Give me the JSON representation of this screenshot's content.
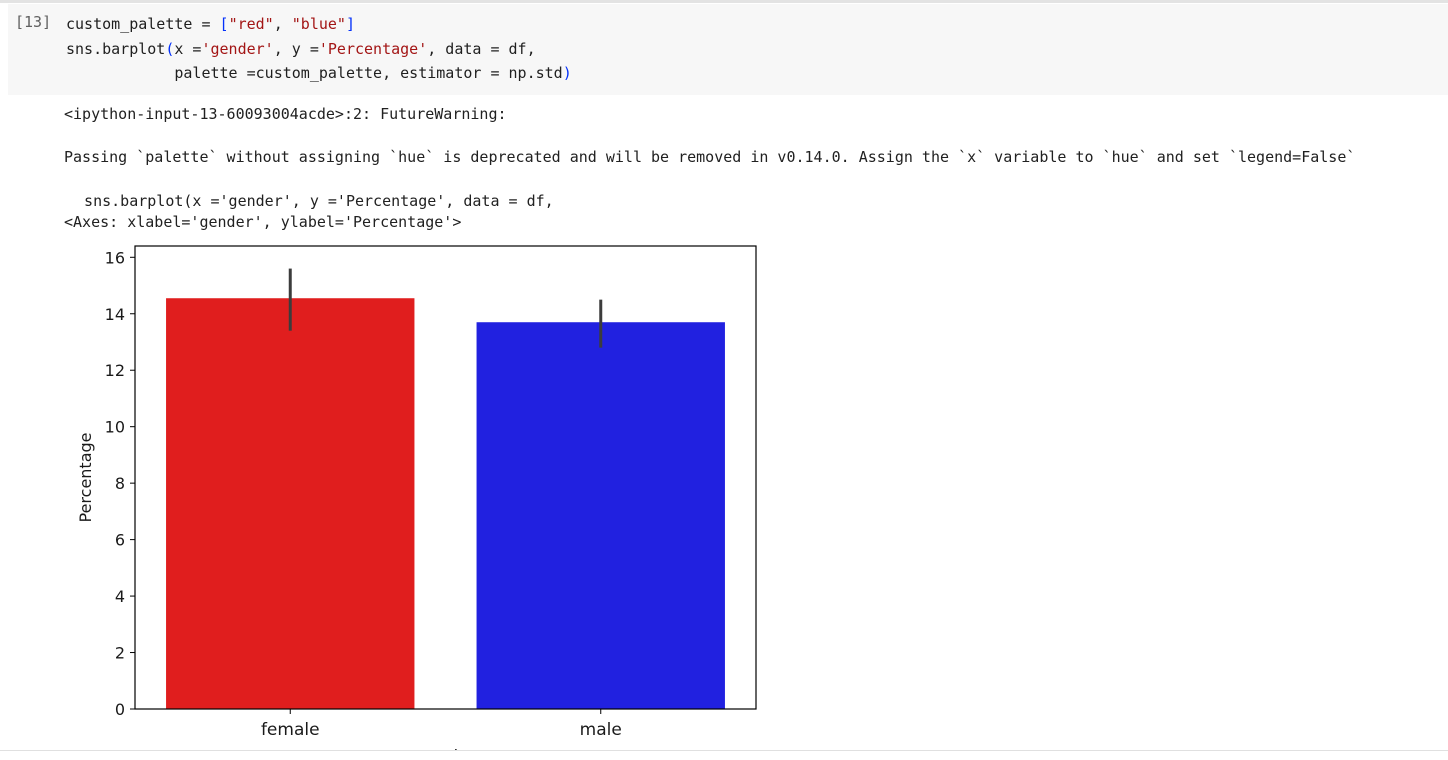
{
  "cell": {
    "exec_count": "[13]",
    "code_tokens": [
      [
        {
          "t": "custom_palette = "
        },
        {
          "t": "[",
          "c": "paren"
        },
        {
          "t": "\"red\"",
          "c": "str"
        },
        {
          "t": ", "
        },
        {
          "t": "\"blue\"",
          "c": "str"
        },
        {
          "t": "]",
          "c": "paren"
        }
      ],
      [
        {
          "t": "sns.barplot"
        },
        {
          "t": "(",
          "c": "paren"
        },
        {
          "t": "x ="
        },
        {
          "t": "'gender'",
          "c": "str"
        },
        {
          "t": ", y ="
        },
        {
          "t": "'Percentage'",
          "c": "str"
        },
        {
          "t": ", data = df,"
        }
      ],
      [
        {
          "t": "            palette =custom_palette, estimator = np.std"
        },
        {
          "t": ")",
          "c": "paren"
        }
      ]
    ]
  },
  "output": {
    "warning_header": "<ipython-input-13-60093004acde>:2: FutureWarning:",
    "warning_body": "Passing `palette` without assigning `hue` is deprecated and will be removed in v0.14.0. Assign the `x` variable to `hue` and set `legend=False`",
    "warning_source": "  sns.barplot(x ='gender', y ='Percentage', data = df,",
    "repr": "<Axes: xlabel='gender', ylabel='Percentage'>"
  },
  "chart_data": {
    "type": "bar",
    "categories": [
      "female",
      "male"
    ],
    "values": [
      14.55,
      13.7
    ],
    "error_bars": [
      [
        13.4,
        15.6
      ],
      [
        12.8,
        14.5
      ]
    ],
    "colors": [
      "#e01e1e",
      "#2121e0"
    ],
    "ylabel": "Percentage",
    "xlabel": "gender",
    "ylim": [
      0,
      16.4
    ],
    "yticks": [
      0,
      2,
      4,
      6,
      8,
      10,
      12,
      14,
      16
    ],
    "grid": false
  }
}
